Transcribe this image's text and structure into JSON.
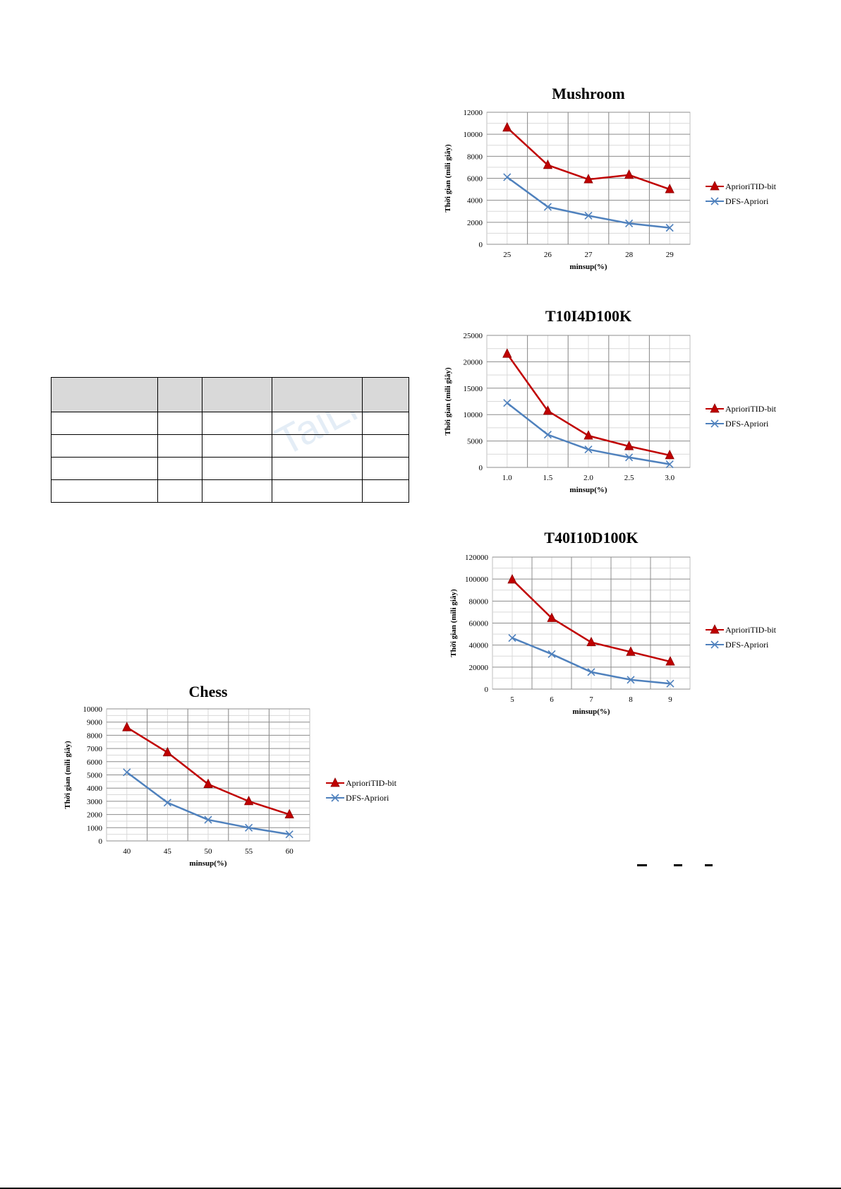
{
  "watermark": "TaiLieu",
  "table": {
    "rows": 5,
    "cols": 5
  },
  "chart_data": [
    {
      "type": "line",
      "title": "Mushroom",
      "xlabel": "minsup(%)",
      "ylabel": "Thời gian (mili giây)",
      "categories": [
        "25",
        "26",
        "27",
        "28",
        "29"
      ],
      "ylim": [
        0,
        12000
      ],
      "yticks": [
        0,
        2000,
        4000,
        6000,
        8000,
        10000,
        12000
      ],
      "grid": true,
      "legend": "right",
      "series": [
        {
          "name": "AprioriTID-bit",
          "color": "#c00000",
          "marker": "triangle",
          "values": [
            10600,
            7200,
            5900,
            6300,
            5000
          ]
        },
        {
          "name": "DFS-Apriori",
          "color": "#4f81bd",
          "marker": "x",
          "values": [
            6100,
            3400,
            2600,
            1900,
            1500
          ]
        }
      ]
    },
    {
      "type": "line",
      "title": "T10I4D100K",
      "xlabel": "minsup(%)",
      "ylabel": "Thời gian (mili giây)",
      "categories": [
        "1.0",
        "1.5",
        "2.0",
        "2.5",
        "3.0"
      ],
      "ylim": [
        0,
        25000
      ],
      "yticks": [
        0,
        5000,
        10000,
        15000,
        20000,
        25000
      ],
      "grid": true,
      "legend": "right",
      "series": [
        {
          "name": "AprioriTID-bit",
          "color": "#c00000",
          "marker": "triangle",
          "values": [
            21500,
            10700,
            6000,
            4000,
            2300
          ]
        },
        {
          "name": "DFS-Apriori",
          "color": "#4f81bd",
          "marker": "x",
          "values": [
            12200,
            6200,
            3400,
            1900,
            600
          ]
        }
      ]
    },
    {
      "type": "line",
      "title": "T40I10D100K",
      "xlabel": "minsup(%)",
      "ylabel": "Thời gian (mili giây)",
      "categories": [
        "5",
        "6",
        "7",
        "8",
        "9"
      ],
      "ylim": [
        0,
        120000
      ],
      "yticks": [
        0,
        20000,
        40000,
        60000,
        80000,
        100000,
        120000
      ],
      "grid": true,
      "legend": "right",
      "series": [
        {
          "name": "AprioriTID-bit",
          "color": "#c00000",
          "marker": "triangle",
          "values": [
            99500,
            64500,
            42500,
            33800,
            25000
          ]
        },
        {
          "name": "DFS-Apriori",
          "color": "#4f81bd",
          "marker": "x",
          "values": [
            46500,
            31800,
            15500,
            8500,
            5000
          ]
        }
      ]
    },
    {
      "type": "line",
      "title": "Chess",
      "xlabel": "minsup(%)",
      "ylabel": "Thời gian (mili giây)",
      "categories": [
        "40",
        "45",
        "50",
        "55",
        "60"
      ],
      "ylim": [
        0,
        10000
      ],
      "yticks": [
        0,
        1000,
        2000,
        3000,
        4000,
        5000,
        6000,
        7000,
        8000,
        9000,
        10000
      ],
      "grid": true,
      "legend": "right",
      "series": [
        {
          "name": "AprioriTID-bit",
          "color": "#c00000",
          "marker": "triangle",
          "values": [
            8600,
            6700,
            4300,
            3000,
            2000
          ]
        },
        {
          "name": "DFS-Apriori",
          "color": "#4f81bd",
          "marker": "x",
          "values": [
            5200,
            2900,
            1600,
            1000,
            500
          ]
        }
      ]
    }
  ]
}
